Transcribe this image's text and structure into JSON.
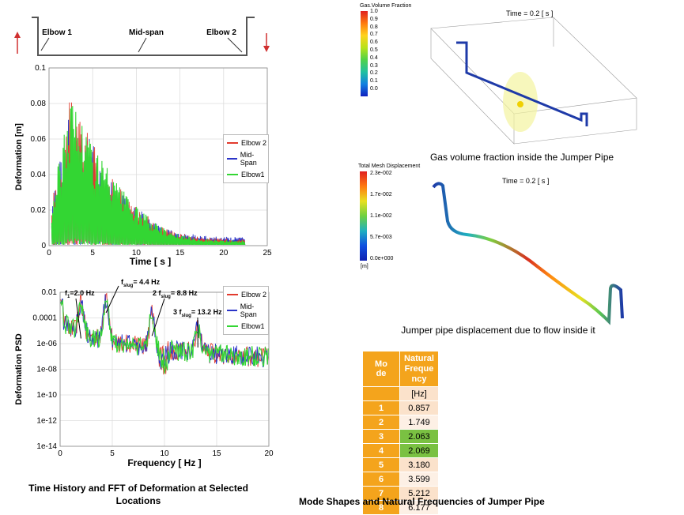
{
  "schematic": {
    "labels": [
      "Elbow 1",
      "Mid-span",
      "Elbow 2"
    ]
  },
  "legend": {
    "entries": [
      {
        "name": "Elbow 2",
        "color": "#e23b2e"
      },
      {
        "name": "Mid-Span",
        "color": "#2b34c8"
      },
      {
        "name": "Elbow1",
        "color": "#33d633"
      }
    ]
  },
  "chart_data": [
    {
      "type": "line",
      "title": "",
      "xlabel": "Time [ s ]",
      "ylabel": "Deformation [m]",
      "xlim": [
        0,
        25
      ],
      "ylim": [
        0,
        0.1
      ],
      "xticks": [
        "0",
        "5",
        "10",
        "15",
        "20",
        "25"
      ],
      "yticks": [
        "0",
        "0.02",
        "0.04",
        "0.06",
        "0.08",
        "0.1"
      ],
      "series": [
        {
          "name": "Elbow 2",
          "envelope_x": [
            0.5,
            2.5,
            5,
            7.5,
            10,
            12.5,
            15,
            17.5,
            20,
            22.5
          ],
          "envelope_y": [
            0.03,
            0.085,
            0.058,
            0.036,
            0.022,
            0.012,
            0.007,
            0.005,
            0.004,
            0.004
          ]
        },
        {
          "name": "Mid-Span",
          "envelope_x": [
            0.5,
            2.5,
            5,
            7.5,
            10,
            12.5,
            15,
            17.5,
            20,
            22.5
          ],
          "envelope_y": [
            0.03,
            0.085,
            0.058,
            0.036,
            0.022,
            0.012,
            0.007,
            0.006,
            0.005,
            0.005
          ]
        },
        {
          "name": "Elbow1",
          "envelope_x": [
            0.5,
            2.5,
            5,
            7.5,
            10,
            12.5,
            15,
            17.5,
            20,
            22.5
          ],
          "envelope_y": [
            0.03,
            0.088,
            0.06,
            0.037,
            0.022,
            0.012,
            0.006,
            0.004,
            0.003,
            0.003
          ]
        }
      ]
    },
    {
      "type": "line",
      "xlabel": "Frequency [ Hz ]",
      "ylabel": "Deformation PSD",
      "xlim": [
        0,
        20
      ],
      "ylim_log10": [
        -14,
        -2
      ],
      "xticks": [
        "0",
        "5",
        "10",
        "15",
        "20"
      ],
      "yticks": [
        "0.01",
        "0.0001",
        "1e-06",
        "1e-08",
        "1e-10",
        "1e-12",
        "1e-14"
      ],
      "peaks_hz": [
        2.0,
        4.4,
        8.8,
        13.2
      ],
      "annotations": [
        {
          "main": "f",
          "sub": "1",
          "tail": "=2.0 Hz"
        },
        {
          "main": "f",
          "sub": "slug",
          "tail": "= 4.4 Hz"
        },
        {
          "main": "2 f",
          "sub": "slug",
          "tail": "= 8.8 Hz"
        },
        {
          "main": "3 f",
          "sub": "slug",
          "tail": "= 13.2 Hz"
        }
      ]
    }
  ],
  "gas_panel": {
    "legend_title": "Gas.Volume Fraction",
    "legend_values": [
      "1.0",
      "0.9",
      "0.8",
      "0.7",
      "0.6",
      "0.5",
      "0.4",
      "0.3",
      "0.2",
      "0.1",
      "0.0"
    ],
    "time_label": "Time = 0.2 [ s ]",
    "caption": "Gas volume fraction inside the Jumper Pipe"
  },
  "disp_panel": {
    "legend_title": "Total Mesh Displacement",
    "legend_values": [
      "2.3e-002",
      "1.7e-002",
      "1.1e-002",
      "5.7e-003",
      "0.0e+000"
    ],
    "unit": "[m]",
    "time_label": "Time = 0.2 [ s ]",
    "caption": "Jumper pipe displacement due to flow inside it"
  },
  "mode_table": {
    "header_mode": [
      "Mo",
      "de"
    ],
    "header_freq": [
      "Natural",
      "Freque",
      "ncy"
    ],
    "unit": "[Hz]",
    "rows": [
      {
        "mode": "1",
        "freq": "0.857"
      },
      {
        "mode": "2",
        "freq": "1.749"
      },
      {
        "mode": "3",
        "freq": "2.063"
      },
      {
        "mode": "4",
        "freq": "2.069"
      },
      {
        "mode": "5",
        "freq": "3.180"
      },
      {
        "mode": "6",
        "freq": "3.599"
      },
      {
        "mode": "7",
        "freq": "5.212"
      },
      {
        "mode": "8",
        "freq": "6.177"
      }
    ]
  },
  "captions": {
    "left_line1": "Time History and FFT of Deformation at Selected",
    "left_line2": "Locations",
    "right": "Mode Shapes and Natural Frequencies of Jumper Pipe"
  },
  "colors": {
    "elbow2": "#e23b2e",
    "midspan": "#2b34c8",
    "elbow1": "#33d633",
    "table_orange": "#f4a41c",
    "table_green": "#7ac142"
  }
}
